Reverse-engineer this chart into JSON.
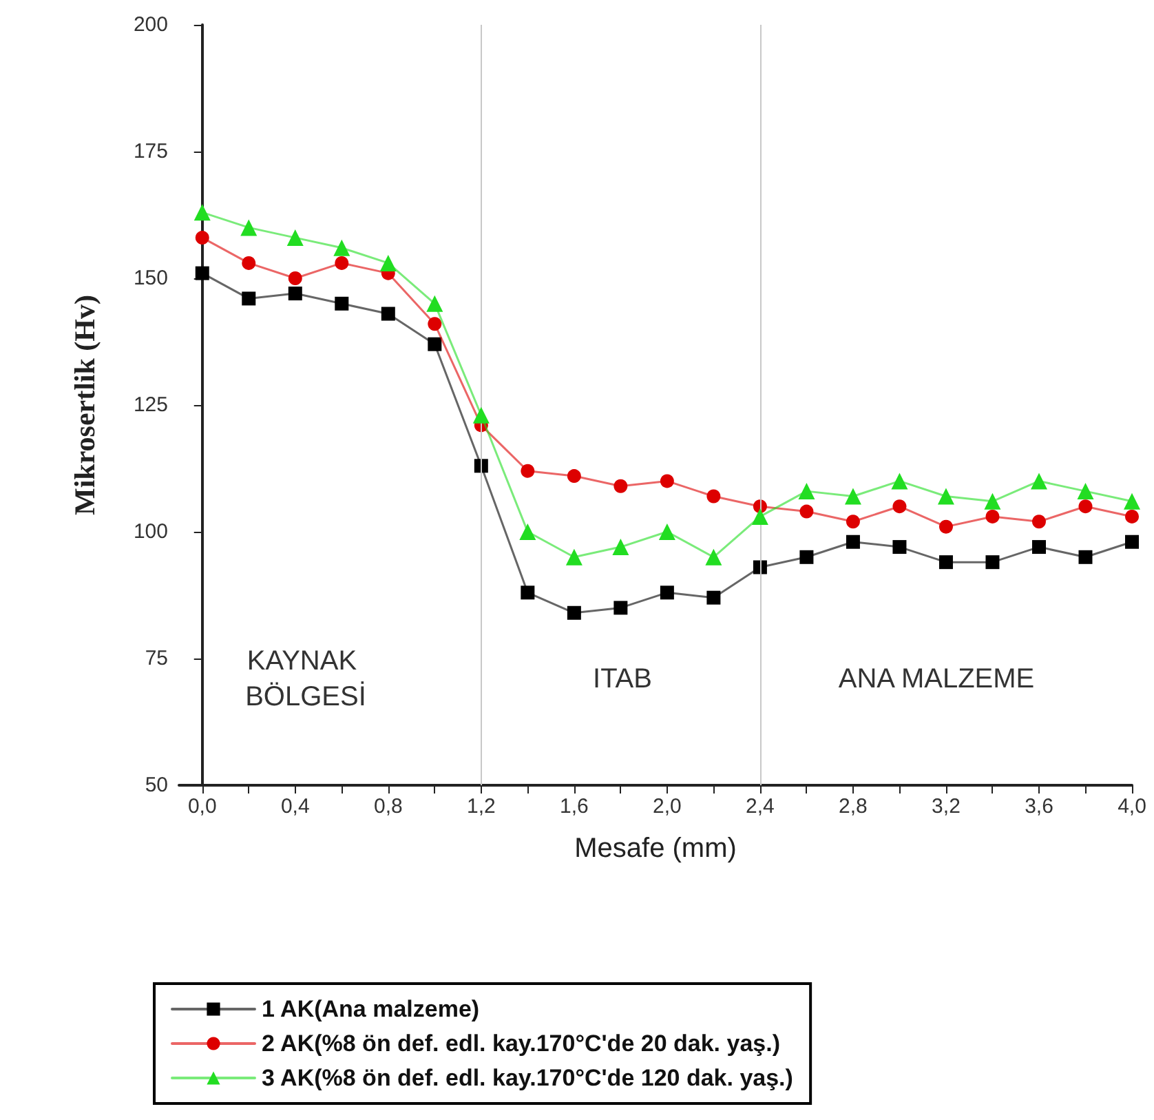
{
  "chart_data": {
    "type": "line",
    "xlabel": "Mesafe (mm)",
    "ylabel": "Mikrosertlik (Hv)",
    "x": [
      0,
      0.2,
      0.4,
      0.6,
      0.8,
      1.0,
      1.2,
      1.4,
      1.6,
      1.8,
      2.0,
      2.2,
      2.4,
      2.6,
      2.8,
      3.0,
      3.2,
      3.4,
      3.6,
      3.8,
      4.0
    ],
    "series": [
      {
        "name": "1 AK(Ana malzeme)",
        "color": "#000000",
        "marker": "square",
        "values": [
          151,
          146,
          147,
          145,
          143,
          137,
          113,
          88,
          84,
          85,
          88,
          87,
          93,
          95,
          98,
          97,
          94,
          94,
          97,
          95,
          98
        ]
      },
      {
        "name": "2 AK(%8 ön def. edl. kay.170°C'de 20 dak. yaş.)",
        "color": "#dd0000",
        "marker": "circle",
        "values": [
          158,
          153,
          150,
          153,
          151,
          141,
          121,
          112,
          111,
          109,
          110,
          107,
          105,
          104,
          102,
          105,
          101,
          103,
          102,
          105,
          103
        ]
      },
      {
        "name": "3 AK(%8 ön def. edl. kay.170°C'de 120 dak. yaş.)",
        "color": "#22dd22",
        "marker": "triangle",
        "values": [
          163,
          160,
          158,
          156,
          153,
          145,
          123,
          100,
          95,
          97,
          100,
          95,
          103,
          108,
          107,
          110,
          107,
          106,
          110,
          108,
          106
        ]
      }
    ],
    "xlim": [
      -0.1,
      4.0
    ],
    "xticks": [
      {
        "value": 0,
        "label": "0,0"
      },
      {
        "value": 0.2,
        "label": null
      },
      {
        "value": 0.4,
        "label": "0,4"
      },
      {
        "value": 0.6,
        "label": null
      },
      {
        "value": 0.8,
        "label": "0,8"
      },
      {
        "value": 1.0,
        "label": null
      },
      {
        "value": 1.2,
        "label": "1,2"
      },
      {
        "value": 1.4,
        "label": null
      },
      {
        "value": 1.6,
        "label": "1,6"
      },
      {
        "value": 1.8,
        "label": null
      },
      {
        "value": 2.0,
        "label": "2,0"
      },
      {
        "value": 2.2,
        "label": null
      },
      {
        "value": 2.4,
        "label": "2,4"
      },
      {
        "value": 2.6,
        "label": null
      },
      {
        "value": 2.8,
        "label": "2,8"
      },
      {
        "value": 3.0,
        "label": null
      },
      {
        "value": 3.2,
        "label": "3,2"
      },
      {
        "value": 3.4,
        "label": null
      },
      {
        "value": 3.6,
        "label": "3,6"
      },
      {
        "value": 3.8,
        "label": null
      },
      {
        "value": 4.0,
        "label": "4,0"
      }
    ],
    "ylim": [
      50,
      200
    ],
    "yticks": [
      50,
      75,
      100,
      125,
      150,
      175,
      200
    ],
    "ref_lines": [
      {
        "axis": "x",
        "value": 1.2,
        "label": null,
        "color": "#c8c8c8"
      },
      {
        "axis": "x",
        "value": 2.4,
        "label": null,
        "color": "#c8c8c8"
      }
    ],
    "annotations": [
      "KAYNAK BÖLGESİ",
      "ITAB",
      "ANA MALZEME"
    ],
    "grid": false,
    "legend": "bottom",
    "line_style": "solid"
  }
}
